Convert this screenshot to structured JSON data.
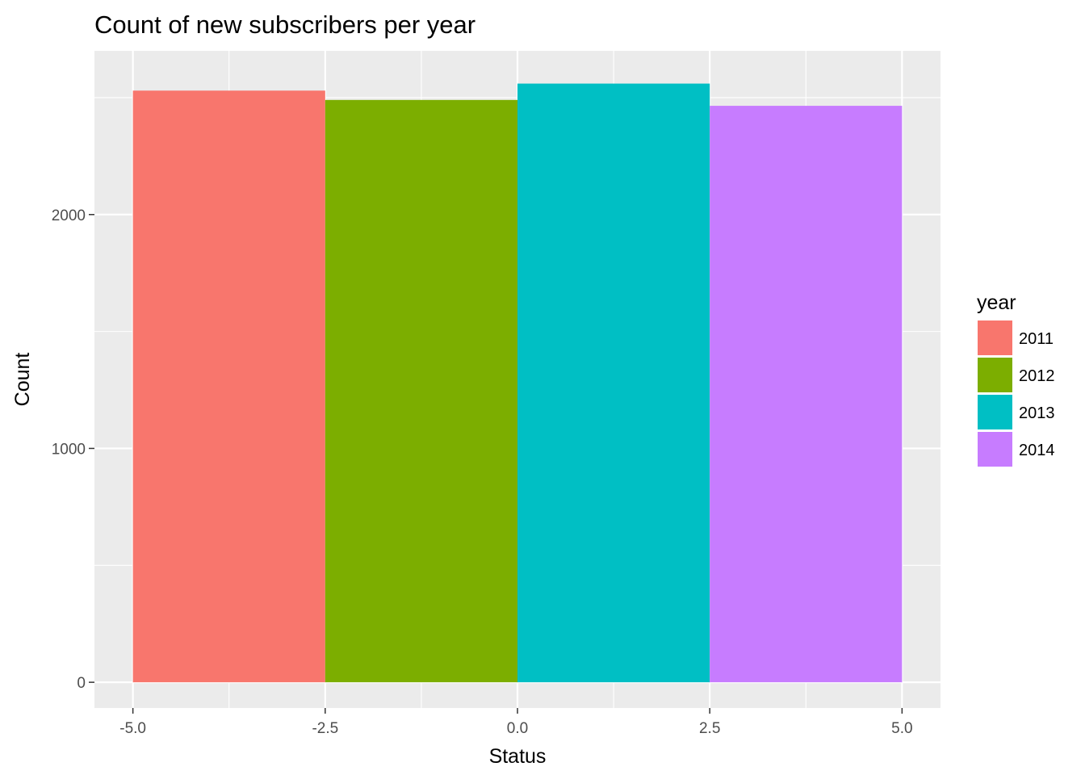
{
  "chart_data": {
    "type": "bar",
    "title": "Count of new subscribers per year",
    "xlabel": "Status",
    "ylabel": "Count",
    "xlim": [
      -5.5,
      5.5
    ],
    "ylim": [
      -110,
      2700
    ],
    "x_ticks": [
      -5.0,
      -2.5,
      0.0,
      2.5,
      5.0
    ],
    "x_tick_labels": [
      "-5.0",
      "-2.5",
      "0.0",
      "2.5",
      "5.0"
    ],
    "y_ticks": [
      0,
      1000,
      2000
    ],
    "y_tick_labels": [
      "0",
      "1000",
      "2000"
    ],
    "grid": true,
    "legend": {
      "title": "year",
      "position": "right"
    },
    "bars": [
      {
        "year": "2011",
        "x_start": -5.0,
        "x_end": -2.5,
        "value": 2530,
        "color": "#F8766D"
      },
      {
        "year": "2012",
        "x_start": -2.5,
        "x_end": 0.0,
        "value": 2490,
        "color": "#7CAE00"
      },
      {
        "year": "2013",
        "x_start": 0.0,
        "x_end": 2.5,
        "value": 2560,
        "color": "#00BFC4"
      },
      {
        "year": "2014",
        "x_start": 2.5,
        "x_end": 5.0,
        "value": 2465,
        "color": "#C77CFF"
      }
    ],
    "panel_color": "#EBEBEB",
    "grid_color": "#FFFFFF"
  }
}
